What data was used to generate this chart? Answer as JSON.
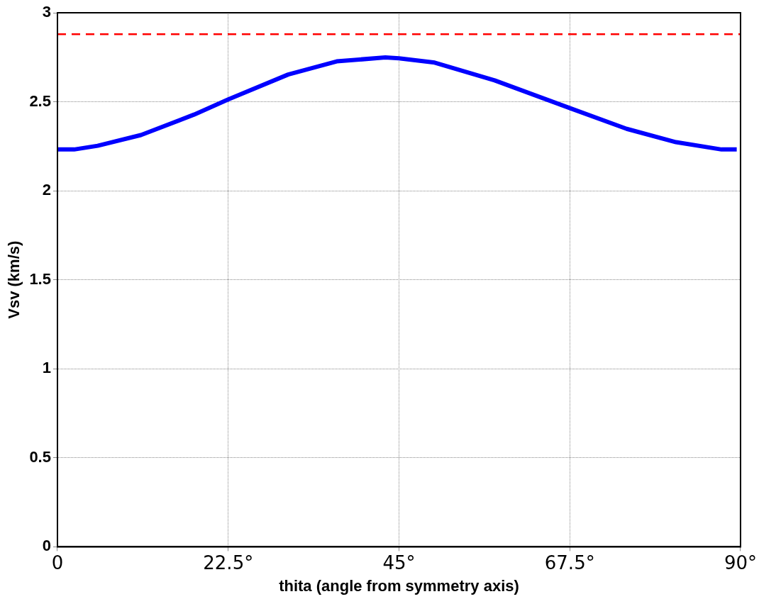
{
  "chart_data": {
    "type": "line",
    "xlabel": "thita (angle from symmetry axis)",
    "ylabel": "Vsv (km/s)",
    "x": [
      0,
      2.2,
      5.3,
      11,
      18,
      22.5,
      30.4,
      36.8,
      43.2,
      45,
      49.7,
      57.6,
      67.8,
      75,
      81.5,
      87.5,
      89.5
    ],
    "series": [
      {
        "color": "#0000ff",
        "values": [
          2.232,
          2.232,
          2.253,
          2.313,
          2.428,
          2.513,
          2.653,
          2.727,
          2.749,
          2.744,
          2.72,
          2.62,
          2.46,
          2.348,
          2.273,
          2.232,
          2.232
        ]
      }
    ],
    "xlim": [
      0,
      90
    ],
    "xticks": [
      0,
      {
        "value": 22.5,
        "label": "22.5°"
      },
      {
        "value": 45,
        "label": "45°"
      },
      {
        "value": 67.5,
        "label": "67.5°"
      },
      {
        "value": 90,
        "label": "90°"
      }
    ],
    "ylim": [
      0,
      3
    ],
    "yticks": [
      0,
      0.5,
      1,
      1.5,
      2,
      2.5,
      3
    ],
    "ref_lines": [
      {
        "axis": "y",
        "value": 2.88,
        "color": "#ff0000",
        "line_style": "dashed"
      }
    ],
    "grid": true,
    "marker": "none",
    "line_style": "solid",
    "legend": false
  }
}
